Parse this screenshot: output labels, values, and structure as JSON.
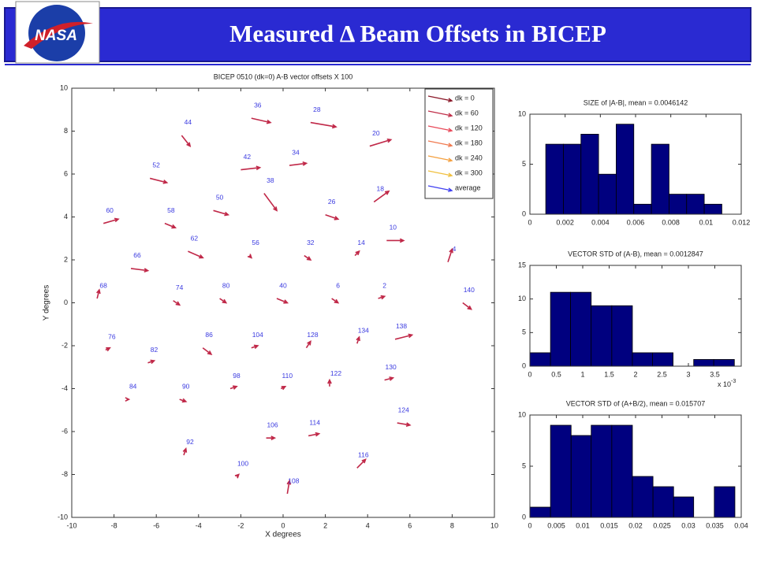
{
  "header": {
    "title": "Measured Δ Beam Offsets in BICEP",
    "logo": "NASA"
  },
  "chart_data": [
    {
      "type": "quiver",
      "title": "BICEP 0510 (dk=0) A-B vector offsets X 100",
      "x_label": "X degrees",
      "y_label": "Y degrees",
      "xlim": [
        -10,
        10
      ],
      "ylim": [
        -10,
        10
      ],
      "xticks": [
        -10,
        -8,
        -6,
        -4,
        -2,
        0,
        2,
        4,
        6,
        8,
        10
      ],
      "yticks": [
        -10,
        -8,
        -6,
        -4,
        -2,
        0,
        2,
        4,
        6,
        8,
        10
      ],
      "arrow_color": "#c02848",
      "label_color": "#3a3ae0",
      "legend": {
        "corner": "upper right",
        "entries": [
          {
            "name": "dk = 0",
            "color": "#8b1a2a"
          },
          {
            "name": "dk = 60",
            "color": "#c0304a"
          },
          {
            "name": "dk = 120",
            "color": "#e84a5a"
          },
          {
            "name": "dk = 180",
            "color": "#f07a50"
          },
          {
            "name": "dk = 240",
            "color": "#f4a040"
          },
          {
            "name": "dk = 300",
            "color": "#f0c040"
          },
          {
            "name": "average",
            "color": "#4040f0"
          }
        ]
      },
      "points": [
        {
          "label": "36",
          "x": -1.5,
          "y": 8.6,
          "u": 0.9,
          "v": -0.2
        },
        {
          "label": "28",
          "x": 1.3,
          "y": 8.4,
          "u": 1.2,
          "v": -0.2
        },
        {
          "label": "20",
          "x": 4.1,
          "y": 7.3,
          "u": 1.0,
          "v": 0.3
        },
        {
          "label": "44",
          "x": -4.8,
          "y": 7.8,
          "u": 0.4,
          "v": -0.5
        },
        {
          "label": "34",
          "x": 0.3,
          "y": 6.4,
          "u": 0.8,
          "v": 0.1
        },
        {
          "label": "42",
          "x": -2.0,
          "y": 6.2,
          "u": 0.9,
          "v": 0.1
        },
        {
          "label": "52",
          "x": -6.3,
          "y": 5.8,
          "u": 0.8,
          "v": -0.2
        },
        {
          "label": "18",
          "x": 4.3,
          "y": 4.7,
          "u": 0.7,
          "v": 0.5
        },
        {
          "label": "38",
          "x": -0.9,
          "y": 5.1,
          "u": 0.6,
          "v": -0.8
        },
        {
          "label": "50",
          "x": -3.3,
          "y": 4.3,
          "u": 0.7,
          "v": -0.2
        },
        {
          "label": "26",
          "x": 2.0,
          "y": 4.1,
          "u": 0.6,
          "v": -0.2
        },
        {
          "label": "60",
          "x": -8.5,
          "y": 3.7,
          "u": 0.7,
          "v": 0.2
        },
        {
          "label": "58",
          "x": -5.6,
          "y": 3.7,
          "u": 0.5,
          "v": -0.2
        },
        {
          "label": "10",
          "x": 4.9,
          "y": 2.9,
          "u": 0.8,
          "v": 0
        },
        {
          "label": "4",
          "x": 7.8,
          "y": 1.9,
          "u": 0.2,
          "v": 0.6
        },
        {
          "label": "56",
          "x": -1.6,
          "y": 2.2,
          "u": 0.1,
          "v": -0.1
        },
        {
          "label": "32",
          "x": 1.0,
          "y": 2.2,
          "u": 0.3,
          "v": -0.2
        },
        {
          "label": "14",
          "x": 3.4,
          "y": 2.2,
          "u": 0.2,
          "v": 0.2
        },
        {
          "label": "62",
          "x": -4.5,
          "y": 2.4,
          "u": 0.7,
          "v": -0.3
        },
        {
          "label": "66",
          "x": -7.2,
          "y": 1.6,
          "u": 0.8,
          "v": -0.1
        },
        {
          "label": "68",
          "x": -8.8,
          "y": 0.2,
          "u": 0.1,
          "v": 0.4
        },
        {
          "label": "74",
          "x": -5.2,
          "y": 0.1,
          "u": 0.3,
          "v": -0.2
        },
        {
          "label": "80",
          "x": -3.0,
          "y": 0.2,
          "u": 0.3,
          "v": -0.2
        },
        {
          "label": "40",
          "x": -0.3,
          "y": 0.2,
          "u": 0.5,
          "v": -0.2
        },
        {
          "label": "6",
          "x": 2.3,
          "y": 0.2,
          "u": 0.3,
          "v": -0.2
        },
        {
          "label": "2",
          "x": 4.5,
          "y": 0.2,
          "u": 0.3,
          "v": 0.1
        },
        {
          "label": "140",
          "x": 8.5,
          "y": 0,
          "u": 0.4,
          "v": -0.3
        },
        {
          "label": "138",
          "x": 5.3,
          "y": -1.7,
          "u": 0.8,
          "v": 0.2
        },
        {
          "label": "76",
          "x": -8.4,
          "y": -2.2,
          "u": 0.2,
          "v": 0.1
        },
        {
          "label": "86",
          "x": -3.8,
          "y": -2.1,
          "u": 0.4,
          "v": -0.3
        },
        {
          "label": "104",
          "x": -1.5,
          "y": -2.1,
          "u": 0.3,
          "v": 0.1
        },
        {
          "label": "128",
          "x": 1.1,
          "y": -2.1,
          "u": 0.2,
          "v": 0.3
        },
        {
          "label": "134",
          "x": 3.5,
          "y": -1.9,
          "u": 0.1,
          "v": 0.3
        },
        {
          "label": "82",
          "x": -6.4,
          "y": -2.8,
          "u": 0.3,
          "v": 0.1
        },
        {
          "label": "130",
          "x": 4.8,
          "y": -3.6,
          "u": 0.4,
          "v": 0.1
        },
        {
          "label": "98",
          "x": -2.5,
          "y": -4.0,
          "u": 0.3,
          "v": 0.1
        },
        {
          "label": "110",
          "x": -0.1,
          "y": -4.0,
          "u": 0.2,
          "v": 0.1
        },
        {
          "label": "122",
          "x": 2.2,
          "y": -3.9,
          "u": 0,
          "v": 0.3
        },
        {
          "label": "84",
          "x": -7.4,
          "y": -4.5,
          "u": 0.1,
          "v": 0
        },
        {
          "label": "90",
          "x": -4.9,
          "y": -4.5,
          "u": 0.3,
          "v": -0.1
        },
        {
          "label": "124",
          "x": 5.4,
          "y": -5.6,
          "u": 0.6,
          "v": -0.1
        },
        {
          "label": "106",
          "x": -0.8,
          "y": -6.3,
          "u": 0.4,
          "v": 0
        },
        {
          "label": "114",
          "x": 1.2,
          "y": -6.2,
          "u": 0.5,
          "v": 0.1
        },
        {
          "label": "92",
          "x": -4.7,
          "y": -7.1,
          "u": 0.1,
          "v": 0.3
        },
        {
          "label": "116",
          "x": 3.5,
          "y": -7.7,
          "u": 0.4,
          "v": 0.4
        },
        {
          "label": "100",
          "x": -2.2,
          "y": -8.1,
          "u": 0.1,
          "v": 0.1
        },
        {
          "label": "108",
          "x": 0.2,
          "y": -8.9,
          "u": 0.1,
          "v": 0.6
        }
      ]
    },
    {
      "type": "histogram",
      "title": "SIZE of |A-B|, mean = 0.0046142",
      "color": "#00007f",
      "bins": [
        0.0009,
        0.0019,
        0.0029,
        0.0039,
        0.0049,
        0.0059,
        0.0069,
        0.0079,
        0.0089,
        0.0099,
        0.0109
      ],
      "values": [
        7,
        7,
        8,
        4,
        9,
        1,
        7,
        2,
        2,
        1
      ],
      "xlim": [
        0,
        0.012
      ],
      "ylim": [
        0,
        10
      ],
      "xticks": [
        0,
        0.002,
        0.004,
        0.006,
        0.008,
        0.01,
        0.012
      ],
      "yticks": [
        0,
        5,
        10
      ]
    },
    {
      "type": "histogram",
      "title": "VECTOR STD of (A-B), mean = 0.0012847",
      "color": "#00007f",
      "bins": [
        0,
        0.39,
        0.77,
        1.16,
        1.55,
        1.94,
        2.32,
        2.71,
        3.1,
        3.48,
        3.87
      ],
      "values": [
        2,
        11,
        11,
        9,
        9,
        2,
        2,
        0,
        1,
        1
      ],
      "xlim": [
        0,
        4
      ],
      "ylim": [
        0,
        15
      ],
      "xticks": [
        0,
        0.5,
        1,
        1.5,
        2,
        2.5,
        3,
        3.5
      ],
      "yticks": [
        0,
        5,
        10,
        15
      ],
      "x_exponent": {
        "base": "x 10",
        "power": "-3"
      }
    },
    {
      "type": "histogram",
      "title": "VECTOR STD of (A+B/2), mean = 0.015707",
      "color": "#00007f",
      "bins": [
        0,
        0.0039,
        0.0078,
        0.0116,
        0.0155,
        0.0194,
        0.0233,
        0.0272,
        0.031,
        0.0349,
        0.0388
      ],
      "values": [
        1,
        9,
        8,
        9,
        9,
        4,
        3,
        2,
        0,
        3
      ],
      "xlim": [
        0,
        0.04
      ],
      "ylim": [
        0,
        10
      ],
      "xticks": [
        0,
        0.005,
        0.01,
        0.015,
        0.02,
        0.025,
        0.03,
        0.035,
        0.04
      ],
      "yticks": [
        0,
        5,
        10
      ]
    }
  ]
}
